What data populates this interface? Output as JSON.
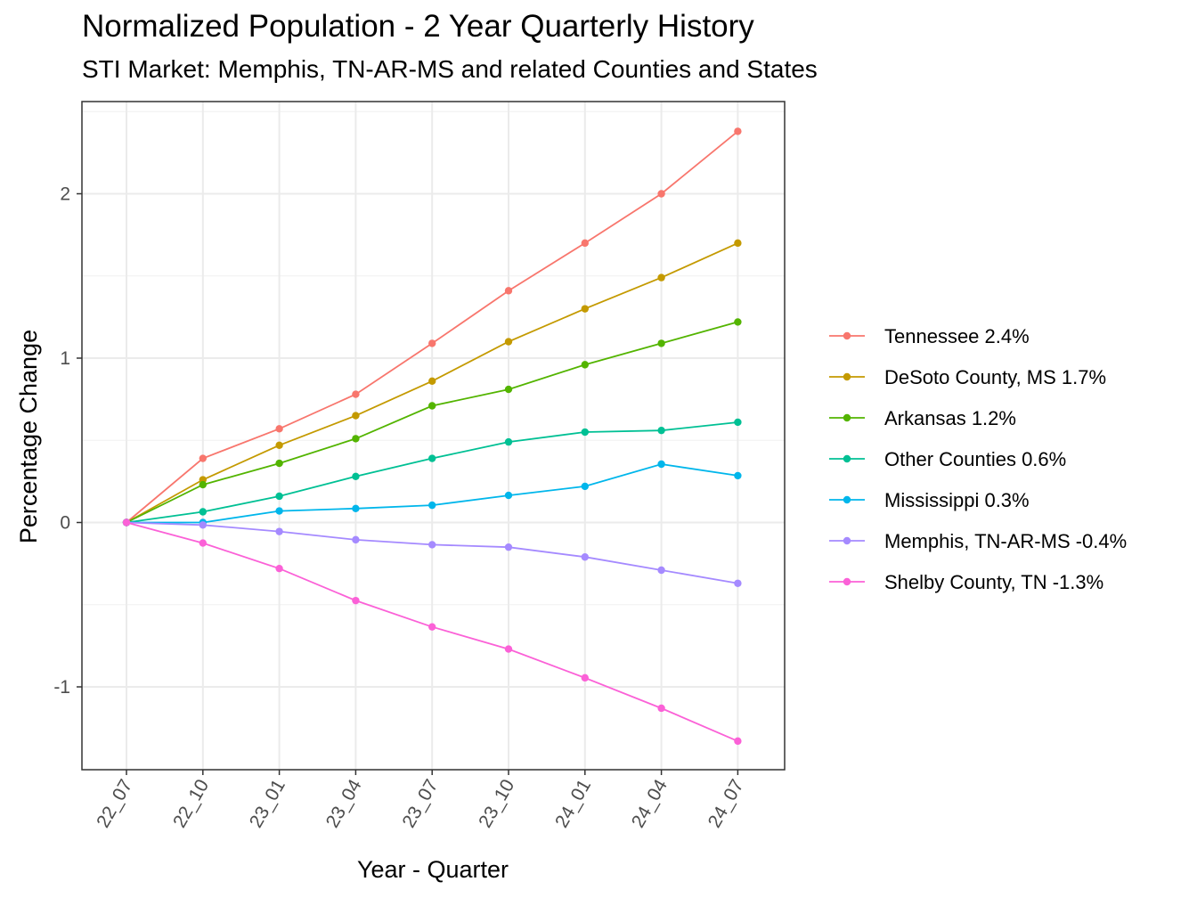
{
  "chart_data": {
    "type": "line",
    "title": "Normalized Population - 2 Year Quarterly History",
    "subtitle": "STI Market: Memphis, TN-AR-MS and related Counties and States",
    "xlabel": "Year - Quarter",
    "ylabel": "Percentage Change",
    "categories": [
      "22_07",
      "22_10",
      "23_01",
      "23_04",
      "23_07",
      "23_10",
      "24_01",
      "24_04",
      "24_07"
    ],
    "ylim": [
      -1.5,
      2.55
    ],
    "yticks": [
      -1,
      0,
      1,
      2
    ],
    "ytick_labels": [
      "-1",
      "0",
      "1",
      "2"
    ],
    "grid": true,
    "legend_position": "right",
    "series": [
      {
        "name": "Tennessee 2.4%",
        "color": "#F8766D",
        "values": [
          0,
          0.39,
          0.57,
          0.78,
          1.09,
          1.41,
          1.7,
          2.0,
          2.38
        ]
      },
      {
        "name": "DeSoto County, MS 1.7%",
        "color": "#C49A00",
        "values": [
          0,
          0.26,
          0.47,
          0.65,
          0.86,
          1.1,
          1.3,
          1.49,
          1.7
        ]
      },
      {
        "name": "Arkansas 1.2%",
        "color": "#53B400",
        "values": [
          0,
          0.23,
          0.36,
          0.51,
          0.71,
          0.81,
          0.96,
          1.09,
          1.22
        ]
      },
      {
        "name": "Other Counties 0.6%",
        "color": "#00C094",
        "values": [
          0,
          0.065,
          0.16,
          0.28,
          0.39,
          0.49,
          0.55,
          0.56,
          0.61
        ]
      },
      {
        "name": "Mississippi 0.3%",
        "color": "#00B6EB",
        "values": [
          0,
          0.0,
          0.07,
          0.085,
          0.105,
          0.165,
          0.22,
          0.355,
          0.285
        ]
      },
      {
        "name": "Memphis, TN-AR-MS -0.4%",
        "color": "#A58AFF",
        "values": [
          0,
          -0.015,
          -0.055,
          -0.105,
          -0.135,
          -0.15,
          -0.21,
          -0.29,
          -0.37
        ]
      },
      {
        "name": "Shelby County, TN -1.3%",
        "color": "#FB61D7",
        "values": [
          0,
          -0.125,
          -0.28,
          -0.475,
          -0.635,
          -0.77,
          -0.945,
          -1.13,
          -1.33
        ]
      }
    ]
  }
}
